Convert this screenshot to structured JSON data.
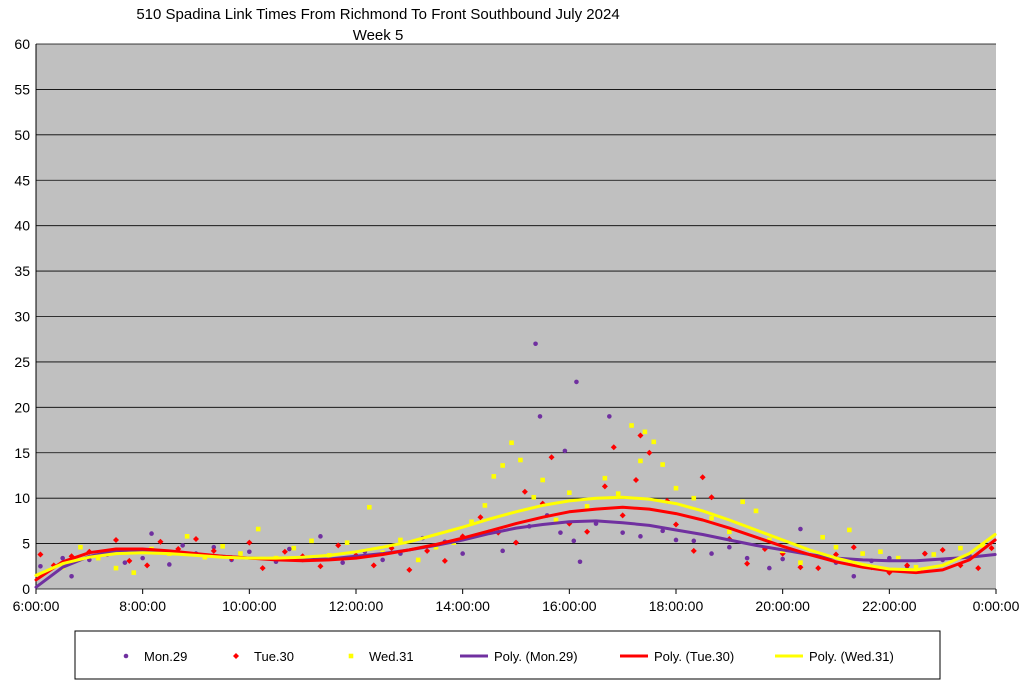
{
  "chart_data": {
    "type": "scatter",
    "title": "510 Spadina Link Times From Richmond To Front Southbound July 2024",
    "subtitle": "Week 5",
    "xlabel": "",
    "ylabel": "",
    "xlim": [
      "6:00:00",
      "0:00:00"
    ],
    "ylim": [
      0,
      60
    ],
    "y_ticks": [
      "0",
      "5",
      "10",
      "15",
      "20",
      "25",
      "30",
      "35",
      "40",
      "45",
      "50",
      "55",
      "60"
    ],
    "x_ticks": [
      "6:00:00",
      "8:00:00",
      "10:00:00",
      "12:00:00",
      "14:00:00",
      "16:00:00",
      "18:00:00",
      "20:00:00",
      "22:00:00",
      "0:00:00"
    ],
    "grid": true,
    "legend_position": "bottom",
    "series": [
      {
        "name": "Mon.29",
        "color": "#7030a0",
        "marker": "circle",
        "points": [
          [
            "6:05",
            2.5
          ],
          [
            "6:30",
            3.4
          ],
          [
            "6:40",
            1.4
          ],
          [
            "7:00",
            3.2
          ],
          [
            "7:20",
            3.8
          ],
          [
            "7:40",
            2.9
          ],
          [
            "8:00",
            3.4
          ],
          [
            "8:10",
            6.1
          ],
          [
            "8:30",
            2.7
          ],
          [
            "8:45",
            4.8
          ],
          [
            "9:00",
            3.9
          ],
          [
            "9:20",
            4.6
          ],
          [
            "9:40",
            3.2
          ],
          [
            "10:00",
            4.1
          ],
          [
            "10:30",
            3.0
          ],
          [
            "10:45",
            4.4
          ],
          [
            "11:00",
            3.2
          ],
          [
            "11:20",
            5.8
          ],
          [
            "11:45",
            2.9
          ],
          [
            "12:10",
            4.1
          ],
          [
            "12:30",
            3.2
          ],
          [
            "12:50",
            3.9
          ],
          [
            "13:15",
            5.6
          ],
          [
            "13:40",
            5.2
          ],
          [
            "14:00",
            3.9
          ],
          [
            "14:30",
            6.3
          ],
          [
            "14:45",
            4.2
          ],
          [
            "15:00",
            5.1
          ],
          [
            "15:15",
            6.9
          ],
          [
            "15:22",
            27.0
          ],
          [
            "15:27",
            19.0
          ],
          [
            "15:35",
            8.1
          ],
          [
            "15:50",
            6.2
          ],
          [
            "15:55",
            15.2
          ],
          [
            "16:05",
            5.3
          ],
          [
            "16:08",
            22.8
          ],
          [
            "16:12",
            3.0
          ],
          [
            "16:30",
            7.2
          ],
          [
            "16:45",
            19.0
          ],
          [
            "17:00",
            6.2
          ],
          [
            "17:20",
            5.8
          ],
          [
            "17:45",
            6.4
          ],
          [
            "18:00",
            5.4
          ],
          [
            "18:20",
            5.3
          ],
          [
            "18:40",
            3.9
          ],
          [
            "19:00",
            4.6
          ],
          [
            "19:20",
            3.4
          ],
          [
            "19:45",
            2.3
          ],
          [
            "20:00",
            3.3
          ],
          [
            "20:20",
            6.6
          ],
          [
            "20:45",
            3.6
          ],
          [
            "21:00",
            2.9
          ],
          [
            "21:20",
            1.4
          ],
          [
            "21:40",
            3.1
          ],
          [
            "22:00",
            3.4
          ],
          [
            "22:20",
            2.5
          ],
          [
            "22:40",
            3.9
          ],
          [
            "23:00",
            3.2
          ],
          [
            "23:30",
            3.7
          ]
        ]
      },
      {
        "name": "Tue.30",
        "color": "#ff0000",
        "marker": "diamond",
        "points": [
          [
            "6:05",
            3.8
          ],
          [
            "6:20",
            2.6
          ],
          [
            "6:40",
            3.6
          ],
          [
            "7:00",
            4.1
          ],
          [
            "7:30",
            5.4
          ],
          [
            "7:45",
            3.1
          ],
          [
            "8:05",
            2.6
          ],
          [
            "8:20",
            5.2
          ],
          [
            "8:40",
            4.4
          ],
          [
            "9:00",
            5.5
          ],
          [
            "9:20",
            4.2
          ],
          [
            "9:40",
            3.4
          ],
          [
            "10:00",
            5.1
          ],
          [
            "10:15",
            2.3
          ],
          [
            "10:40",
            4.1
          ],
          [
            "11:00",
            3.6
          ],
          [
            "11:20",
            2.5
          ],
          [
            "11:40",
            4.8
          ],
          [
            "12:00",
            3.7
          ],
          [
            "12:20",
            2.6
          ],
          [
            "12:40",
            4.5
          ],
          [
            "13:00",
            2.1
          ],
          [
            "13:20",
            4.2
          ],
          [
            "13:40",
            3.1
          ],
          [
            "14:00",
            5.8
          ],
          [
            "14:20",
            7.9
          ],
          [
            "14:40",
            6.2
          ],
          [
            "15:00",
            5.1
          ],
          [
            "15:10",
            10.7
          ],
          [
            "15:30",
            9.4
          ],
          [
            "15:40",
            14.5
          ],
          [
            "16:00",
            7.2
          ],
          [
            "16:20",
            6.3
          ],
          [
            "16:40",
            11.3
          ],
          [
            "16:50",
            15.6
          ],
          [
            "17:00",
            8.1
          ],
          [
            "17:15",
            12.0
          ],
          [
            "17:20",
            16.9
          ],
          [
            "17:30",
            15.0
          ],
          [
            "17:50",
            9.7
          ],
          [
            "18:00",
            7.1
          ],
          [
            "18:20",
            4.2
          ],
          [
            "18:30",
            12.3
          ],
          [
            "18:40",
            10.1
          ],
          [
            "19:00",
            5.5
          ],
          [
            "19:20",
            2.8
          ],
          [
            "19:40",
            4.4
          ],
          [
            "20:00",
            3.9
          ],
          [
            "20:20",
            2.4
          ],
          [
            "20:40",
            2.3
          ],
          [
            "21:00",
            3.8
          ],
          [
            "21:20",
            4.6
          ],
          [
            "21:40",
            2.4
          ],
          [
            "22:00",
            1.8
          ],
          [
            "22:20",
            2.6
          ],
          [
            "22:40",
            3.9
          ],
          [
            "23:00",
            4.3
          ],
          [
            "23:20",
            2.6
          ],
          [
            "23:40",
            2.3
          ],
          [
            "23:55",
            4.5
          ]
        ]
      },
      {
        "name": "Wed.31",
        "color": "#ffff00",
        "marker": "square",
        "points": [
          [
            "6:05",
            1.5
          ],
          [
            "6:30",
            2.4
          ],
          [
            "6:50",
            4.6
          ],
          [
            "7:10",
            3.4
          ],
          [
            "7:30",
            2.3
          ],
          [
            "7:50",
            1.8
          ],
          [
            "8:10",
            4.4
          ],
          [
            "8:30",
            3.9
          ],
          [
            "8:50",
            5.8
          ],
          [
            "9:10",
            3.5
          ],
          [
            "9:30",
            4.7
          ],
          [
            "9:50",
            3.9
          ],
          [
            "10:10",
            6.6
          ],
          [
            "10:30",
            3.4
          ],
          [
            "10:50",
            4.5
          ],
          [
            "11:10",
            5.3
          ],
          [
            "11:30",
            3.7
          ],
          [
            "11:50",
            5.1
          ],
          [
            "12:15",
            9.0
          ],
          [
            "12:30",
            4.0
          ],
          [
            "12:50",
            5.4
          ],
          [
            "13:10",
            3.2
          ],
          [
            "13:30",
            4.6
          ],
          [
            "13:50",
            5.1
          ],
          [
            "14:10",
            7.4
          ],
          [
            "14:25",
            9.2
          ],
          [
            "14:35",
            12.4
          ],
          [
            "14:45",
            13.6
          ],
          [
            "14:55",
            16.1
          ],
          [
            "15:05",
            14.2
          ],
          [
            "15:20",
            10.1
          ],
          [
            "15:30",
            12.0
          ],
          [
            "15:45",
            7.6
          ],
          [
            "16:00",
            10.6
          ],
          [
            "16:20",
            9.1
          ],
          [
            "16:40",
            12.2
          ],
          [
            "16:55",
            10.5
          ],
          [
            "17:10",
            18.0
          ],
          [
            "17:20",
            14.1
          ],
          [
            "17:25",
            17.3
          ],
          [
            "17:35",
            16.2
          ],
          [
            "17:45",
            13.7
          ],
          [
            "18:00",
            11.1
          ],
          [
            "18:20",
            10.0
          ],
          [
            "18:40",
            7.8
          ],
          [
            "19:00",
            6.3
          ],
          [
            "19:15",
            9.6
          ],
          [
            "19:30",
            8.6
          ],
          [
            "19:45",
            5.4
          ],
          [
            "20:00",
            4.2
          ],
          [
            "20:20",
            2.9
          ],
          [
            "20:45",
            5.7
          ],
          [
            "21:00",
            4.6
          ],
          [
            "21:15",
            6.5
          ],
          [
            "21:30",
            3.9
          ],
          [
            "21:50",
            4.1
          ],
          [
            "22:10",
            3.4
          ],
          [
            "22:30",
            2.4
          ],
          [
            "22:50",
            3.8
          ],
          [
            "23:20",
            4.5
          ],
          [
            "23:45",
            4.8
          ]
        ]
      }
    ],
    "trendlines": [
      {
        "name": "Poly. (Mon.29)",
        "color": "#7030a0",
        "points": [
          [
            "6:00",
            0.2
          ],
          [
            "6:30",
            2.4
          ],
          [
            "7:00",
            3.6
          ],
          [
            "7:30",
            4.2
          ],
          [
            "8:00",
            4.3
          ],
          [
            "8:30",
            4.1
          ],
          [
            "9:00",
            3.8
          ],
          [
            "9:30",
            3.6
          ],
          [
            "10:00",
            3.4
          ],
          [
            "10:30",
            3.3
          ],
          [
            "11:00",
            3.2
          ],
          [
            "11:30",
            3.3
          ],
          [
            "12:00",
            3.6
          ],
          [
            "12:30",
            3.9
          ],
          [
            "13:00",
            4.3
          ],
          [
            "13:30",
            4.8
          ],
          [
            "14:00",
            5.4
          ],
          [
            "14:30",
            6.1
          ],
          [
            "15:00",
            6.7
          ],
          [
            "15:30",
            7.1
          ],
          [
            "16:00",
            7.4
          ],
          [
            "16:30",
            7.5
          ],
          [
            "17:00",
            7.3
          ],
          [
            "17:30",
            7.0
          ],
          [
            "18:00",
            6.5
          ],
          [
            "18:30",
            6.0
          ],
          [
            "19:00",
            5.4
          ],
          [
            "19:30",
            4.8
          ],
          [
            "20:00",
            4.3
          ],
          [
            "20:30",
            3.8
          ],
          [
            "21:00",
            3.4
          ],
          [
            "21:30",
            3.2
          ],
          [
            "22:00",
            3.1
          ],
          [
            "22:30",
            3.1
          ],
          [
            "23:00",
            3.3
          ],
          [
            "23:30",
            3.5
          ],
          [
            "23:59",
            3.8
          ]
        ]
      },
      {
        "name": "Poly. (Tue.30)",
        "color": "#ff0000",
        "points": [
          [
            "6:00",
            1.0
          ],
          [
            "6:30",
            3.0
          ],
          [
            "7:00",
            4.0
          ],
          [
            "7:30",
            4.4
          ],
          [
            "8:00",
            4.4
          ],
          [
            "8:30",
            4.2
          ],
          [
            "9:00",
            3.9
          ],
          [
            "9:30",
            3.6
          ],
          [
            "10:00",
            3.4
          ],
          [
            "10:30",
            3.2
          ],
          [
            "11:00",
            3.1
          ],
          [
            "11:30",
            3.2
          ],
          [
            "12:00",
            3.4
          ],
          [
            "12:30",
            3.8
          ],
          [
            "13:00",
            4.3
          ],
          [
            "13:30",
            4.9
          ],
          [
            "14:00",
            5.6
          ],
          [
            "14:30",
            6.4
          ],
          [
            "15:00",
            7.2
          ],
          [
            "15:30",
            7.9
          ],
          [
            "16:00",
            8.5
          ],
          [
            "16:30",
            8.8
          ],
          [
            "17:00",
            9.0
          ],
          [
            "17:30",
            8.8
          ],
          [
            "18:00",
            8.3
          ],
          [
            "18:30",
            7.6
          ],
          [
            "19:00",
            6.7
          ],
          [
            "19:30",
            5.7
          ],
          [
            "20:00",
            4.7
          ],
          [
            "20:30",
            3.8
          ],
          [
            "21:00",
            3.0
          ],
          [
            "21:30",
            2.4
          ],
          [
            "22:00",
            2.0
          ],
          [
            "22:30",
            1.8
          ],
          [
            "23:00",
            2.1
          ],
          [
            "23:30",
            3.2
          ],
          [
            "23:59",
            5.4
          ]
        ]
      },
      {
        "name": "Poly. (Wed.31)",
        "color": "#ffff00",
        "points": [
          [
            "6:00",
            1.5
          ],
          [
            "6:30",
            2.8
          ],
          [
            "7:00",
            3.5
          ],
          [
            "7:30",
            3.9
          ],
          [
            "8:00",
            4.0
          ],
          [
            "8:30",
            3.9
          ],
          [
            "9:00",
            3.7
          ],
          [
            "9:30",
            3.5
          ],
          [
            "10:00",
            3.4
          ],
          [
            "10:30",
            3.4
          ],
          [
            "11:00",
            3.5
          ],
          [
            "11:30",
            3.7
          ],
          [
            "12:00",
            4.1
          ],
          [
            "12:30",
            4.6
          ],
          [
            "13:00",
            5.2
          ],
          [
            "13:30",
            6.0
          ],
          [
            "14:00",
            6.8
          ],
          [
            "14:30",
            7.7
          ],
          [
            "15:00",
            8.5
          ],
          [
            "15:30",
            9.2
          ],
          [
            "16:00",
            9.7
          ],
          [
            "16:30",
            10.0
          ],
          [
            "17:00",
            10.1
          ],
          [
            "17:30",
            9.9
          ],
          [
            "18:00",
            9.4
          ],
          [
            "18:30",
            8.6
          ],
          [
            "19:00",
            7.6
          ],
          [
            "19:30",
            6.5
          ],
          [
            "20:00",
            5.4
          ],
          [
            "20:30",
            4.3
          ],
          [
            "21:00",
            3.4
          ],
          [
            "21:30",
            2.7
          ],
          [
            "22:00",
            2.2
          ],
          [
            "22:30",
            2.1
          ],
          [
            "23:00",
            2.6
          ],
          [
            "23:30",
            3.9
          ],
          [
            "23:59",
            6.0
          ]
        ]
      }
    ]
  }
}
